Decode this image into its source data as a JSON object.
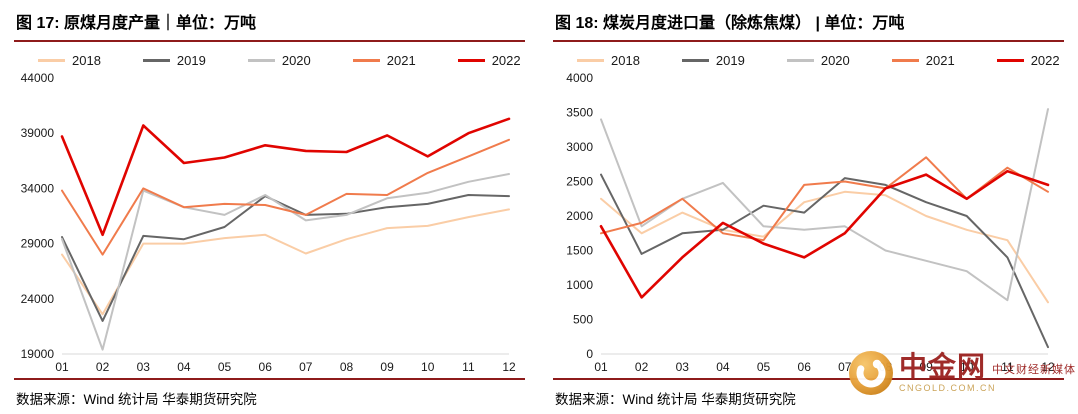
{
  "accent_color": "#8E1B1B",
  "panels": [
    {
      "source": "数据来源：Wind 统计局 华泰期货研究院"
    },
    {
      "source": "数据来源：Wind 统计局 华泰期货研究院"
    }
  ],
  "watermark": {
    "brand": "中金网",
    "tagline": "中文财经新媒体",
    "domain": "CNGOLD.COM.CN",
    "logo_icon": "gold-coin-swirl-icon",
    "gold_color": "#E8A33D",
    "red_color": "#9C2321"
  },
  "chart_data": [
    {
      "type": "line",
      "title": "图 17: 原煤月度产量｜单位：万吨",
      "xlabel": "",
      "ylabel": "万吨",
      "categories": [
        "01",
        "02",
        "03",
        "04",
        "05",
        "06",
        "07",
        "08",
        "09",
        "10",
        "11",
        "12"
      ],
      "ylim": [
        19000,
        44000
      ],
      "yticks": [
        19000,
        24000,
        29000,
        34000,
        39000,
        44000
      ],
      "grid": false,
      "legend_position": "top",
      "series": [
        {
          "name": "2018",
          "color": "#FACDA6",
          "width": 2,
          "values": [
            28000,
            22600,
            29000,
            29000,
            29500,
            29800,
            28100,
            29400,
            30400,
            30600,
            31400,
            32100
          ]
        },
        {
          "name": "2019",
          "color": "#666666",
          "width": 2,
          "values": [
            29600,
            22000,
            29700,
            29400,
            30500,
            33300,
            31600,
            31700,
            32300,
            32600,
            33400,
            33300
          ]
        },
        {
          "name": "2020",
          "color": "#C2C2C2",
          "width": 2,
          "values": [
            29400,
            19400,
            33800,
            32300,
            31600,
            33400,
            31100,
            31600,
            33100,
            33600,
            34600,
            35300
          ]
        },
        {
          "name": "2021",
          "color": "#F07B4C",
          "width": 2,
          "values": [
            33800,
            28000,
            34000,
            32300,
            32600,
            32500,
            31600,
            33500,
            33400,
            35400,
            36900,
            38400
          ]
        },
        {
          "name": "2022",
          "color": "#E00400",
          "width": 2.6,
          "values": [
            38700,
            29800,
            39700,
            36300,
            36800,
            37900,
            37400,
            37300,
            38800,
            36900,
            39000,
            40300
          ]
        }
      ]
    },
    {
      "type": "line",
      "title": "图 18: 煤炭月度进口量（除炼焦煤） | 单位：万吨",
      "xlabel": "",
      "ylabel": "万吨",
      "categories": [
        "01",
        "02",
        "03",
        "04",
        "05",
        "06",
        "07",
        "08",
        "09",
        "10",
        "11",
        "12"
      ],
      "ylim": [
        0,
        4000
      ],
      "yticks": [
        0,
        500,
        1000,
        1500,
        2000,
        2500,
        3000,
        3500,
        4000
      ],
      "grid": false,
      "legend_position": "top",
      "series": [
        {
          "name": "2018",
          "color": "#FACDA6",
          "width": 2,
          "values": [
            2250,
            1750,
            2050,
            1800,
            1700,
            2200,
            2350,
            2300,
            2000,
            1800,
            1650,
            750
          ]
        },
        {
          "name": "2019",
          "color": "#666666",
          "width": 2,
          "values": [
            2600,
            1450,
            1750,
            1800,
            2150,
            2050,
            2550,
            2450,
            2200,
            2000,
            1400,
            100
          ]
        },
        {
          "name": "2020",
          "color": "#C2C2C2",
          "width": 2,
          "values": [
            3400,
            1850,
            2250,
            2480,
            1850,
            1800,
            1850,
            1500,
            1350,
            1200,
            780,
            3550
          ]
        },
        {
          "name": "2021",
          "color": "#F07B4C",
          "width": 2,
          "values": [
            1750,
            1900,
            2250,
            1750,
            1650,
            2450,
            2500,
            2400,
            2850,
            2250,
            2700,
            2350
          ]
        },
        {
          "name": "2022",
          "color": "#E00400",
          "width": 2.6,
          "values": [
            1850,
            820,
            1400,
            1900,
            1600,
            1400,
            1750,
            2400,
            2600,
            2250,
            2650,
            2450
          ]
        }
      ]
    }
  ]
}
